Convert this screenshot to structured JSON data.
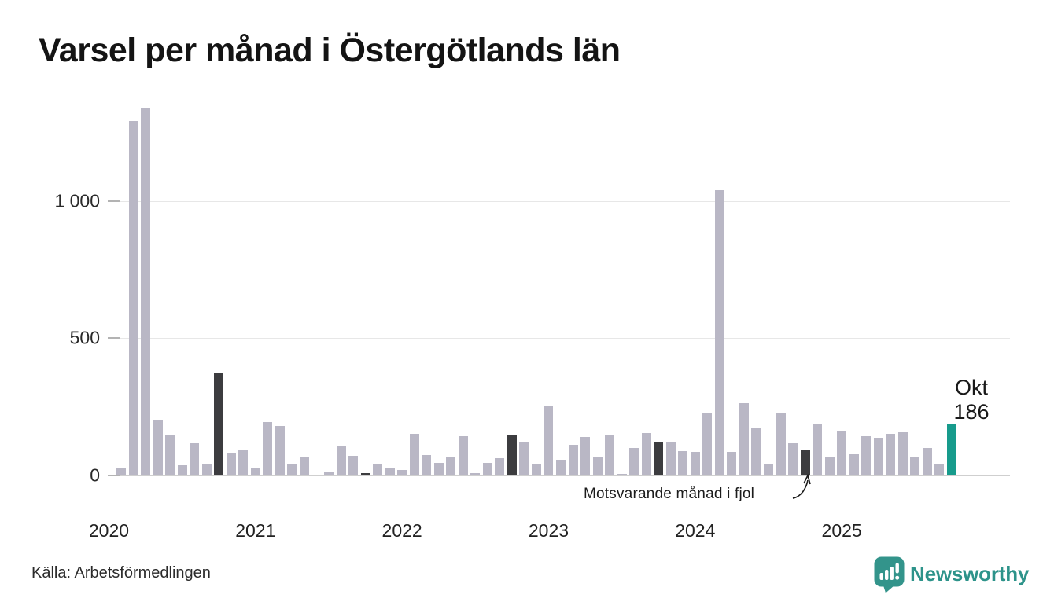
{
  "title": "Varsel per månad i Östergötlands län",
  "source": "Källa: Arbetsförmedlingen",
  "branding": {
    "name": "Newsworthy",
    "color": "#2d938a"
  },
  "colors": {
    "bar": "#b9b7c5",
    "last_year_bar": "#3c3c3f",
    "current_bar": "#179b8c",
    "gridline": "#e7e7e7",
    "axis_line": "#cfcfcf",
    "text": "#1a1a1a"
  },
  "chart_data": {
    "type": "bar",
    "title": "Varsel per månad i Östergötlands län",
    "xlabel": "",
    "ylabel": "",
    "ylim": [
      0,
      1375
    ],
    "grid": "horizontal",
    "legend_position": "none",
    "yticks": [
      {
        "value": 0,
        "label": "0"
      },
      {
        "value": 500,
        "label": "500"
      },
      {
        "value": 1000,
        "label": "1 000"
      }
    ],
    "xticks": [
      {
        "anchor_month": "2020-01",
        "label": "2020"
      },
      {
        "anchor_month": "2021-01",
        "label": "2021"
      },
      {
        "anchor_month": "2022-01",
        "label": "2022"
      },
      {
        "anchor_month": "2023-01",
        "label": "2023"
      },
      {
        "anchor_month": "2024-01",
        "label": "2024"
      },
      {
        "anchor_month": "2025-01",
        "label": "2025"
      }
    ],
    "current_label": {
      "line1": "Okt",
      "line2": "186"
    },
    "annotation": {
      "text": "Motsvarande månad i fjol",
      "points_to": "2024-10"
    },
    "highlight_legend": {
      "last_year_months": [
        "2020-10",
        "2021-10",
        "2022-10",
        "2023-10",
        "2024-10"
      ],
      "current_month": "2025-10"
    },
    "points": [
      {
        "m": "2020-02",
        "v": 30
      },
      {
        "m": "2020-03",
        "v": 1290
      },
      {
        "m": "2020-04",
        "v": 1340
      },
      {
        "m": "2020-05",
        "v": 200
      },
      {
        "m": "2020-06",
        "v": 148
      },
      {
        "m": "2020-07",
        "v": 36
      },
      {
        "m": "2020-08",
        "v": 116
      },
      {
        "m": "2020-09",
        "v": 43
      },
      {
        "m": "2020-10",
        "v": 376,
        "hl": "fjol"
      },
      {
        "m": "2020-11",
        "v": 79
      },
      {
        "m": "2020-12",
        "v": 94
      },
      {
        "m": "2021-01",
        "v": 25
      },
      {
        "m": "2021-02",
        "v": 196
      },
      {
        "m": "2021-03",
        "v": 181
      },
      {
        "m": "2021-04",
        "v": 43
      },
      {
        "m": "2021-05",
        "v": 67
      },
      {
        "m": "2021-06",
        "v": 4
      },
      {
        "m": "2021-07",
        "v": 15
      },
      {
        "m": "2021-08",
        "v": 105
      },
      {
        "m": "2021-09",
        "v": 72
      },
      {
        "m": "2021-10",
        "v": 10,
        "hl": "fjol"
      },
      {
        "m": "2021-11",
        "v": 44
      },
      {
        "m": "2021-12",
        "v": 28
      },
      {
        "m": "2022-01",
        "v": 20
      },
      {
        "m": "2022-02",
        "v": 153
      },
      {
        "m": "2022-03",
        "v": 74
      },
      {
        "m": "2022-04",
        "v": 45
      },
      {
        "m": "2022-05",
        "v": 69
      },
      {
        "m": "2022-06",
        "v": 144
      },
      {
        "m": "2022-07",
        "v": 8
      },
      {
        "m": "2022-08",
        "v": 46
      },
      {
        "m": "2022-09",
        "v": 64
      },
      {
        "m": "2022-10",
        "v": 150,
        "hl": "fjol"
      },
      {
        "m": "2022-11",
        "v": 124
      },
      {
        "m": "2022-12",
        "v": 41
      },
      {
        "m": "2023-01",
        "v": 253
      },
      {
        "m": "2023-02",
        "v": 56
      },
      {
        "m": "2023-03",
        "v": 113
      },
      {
        "m": "2023-04",
        "v": 139
      },
      {
        "m": "2023-05",
        "v": 70
      },
      {
        "m": "2023-06",
        "v": 146
      },
      {
        "m": "2023-07",
        "v": 6
      },
      {
        "m": "2023-08",
        "v": 100
      },
      {
        "m": "2023-09",
        "v": 154
      },
      {
        "m": "2023-10",
        "v": 123,
        "hl": "fjol"
      },
      {
        "m": "2023-11",
        "v": 123
      },
      {
        "m": "2023-12",
        "v": 90
      },
      {
        "m": "2024-01",
        "v": 85
      },
      {
        "m": "2024-02",
        "v": 228
      },
      {
        "m": "2024-03",
        "v": 1038
      },
      {
        "m": "2024-04",
        "v": 86
      },
      {
        "m": "2024-05",
        "v": 263
      },
      {
        "m": "2024-06",
        "v": 175
      },
      {
        "m": "2024-07",
        "v": 41
      },
      {
        "m": "2024-08",
        "v": 229
      },
      {
        "m": "2024-09",
        "v": 117
      },
      {
        "m": "2024-10",
        "v": 94,
        "hl": "fjol"
      },
      {
        "m": "2024-11",
        "v": 189
      },
      {
        "m": "2024-12",
        "v": 70
      },
      {
        "m": "2025-01",
        "v": 163
      },
      {
        "m": "2025-02",
        "v": 78
      },
      {
        "m": "2025-03",
        "v": 142
      },
      {
        "m": "2025-04",
        "v": 137
      },
      {
        "m": "2025-05",
        "v": 152
      },
      {
        "m": "2025-06",
        "v": 157
      },
      {
        "m": "2025-07",
        "v": 66
      },
      {
        "m": "2025-08",
        "v": 100
      },
      {
        "m": "2025-09",
        "v": 41
      },
      {
        "m": "2025-10",
        "v": 186,
        "hl": "current"
      }
    ]
  }
}
